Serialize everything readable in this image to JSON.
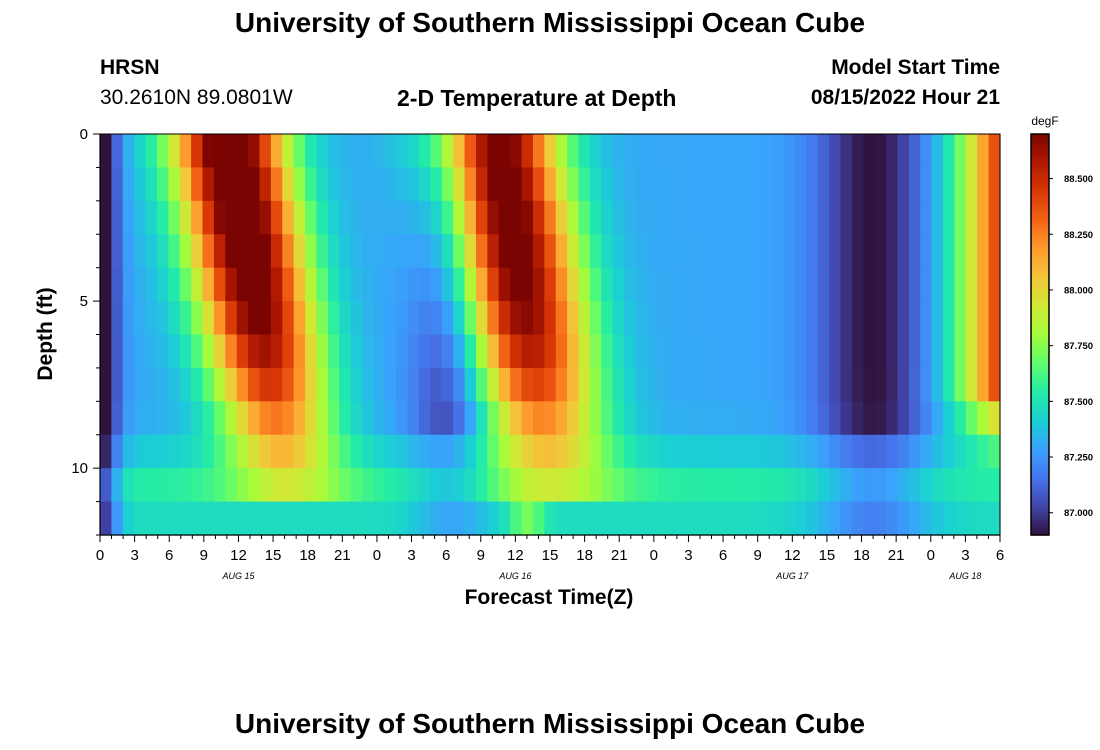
{
  "page": {
    "title": "University of Southern Mississippi Ocean Cube",
    "station": "HRSN",
    "coords": "30.2610N  89.0801W",
    "subtitle": "2-D Temperature at Depth",
    "model_label": "Model Start Time",
    "model_time": "08/15/2022 Hour 21",
    "footer_title": "University of Southern Mississippi Ocean Cube"
  },
  "chart_data": {
    "type": "heatmap",
    "xlabel": "Forecast Time(Z)",
    "ylabel": "Depth (ft)",
    "x_hours_since_aug15_00z": [
      0,
      78
    ],
    "x_tick_labels": [
      "0",
      "3",
      "6",
      "9",
      "12",
      "15",
      "18",
      "21",
      "0",
      "3",
      "6",
      "9",
      "12",
      "15",
      "18",
      "21",
      "0",
      "3",
      "6",
      "9",
      "12",
      "15",
      "18",
      "21",
      "0",
      "3",
      "6"
    ],
    "day_labels": [
      {
        "label": "AUG 15",
        "hour": 12
      },
      {
        "label": "AUG 16",
        "hour": 36
      },
      {
        "label": "AUG 17",
        "hour": 60
      },
      {
        "label": "AUG 18",
        "hour": 75
      }
    ],
    "y_range_ft": [
      0,
      12
    ],
    "y_reversed": true,
    "y_ticks": [
      0,
      5,
      10
    ],
    "colorbar": {
      "unit": "degF",
      "min": 86.9,
      "max": 88.7,
      "tick_values": [
        87.0,
        87.25,
        87.5,
        87.75,
        88.0,
        88.25,
        88.5
      ],
      "tick_labels": [
        "87.000",
        "87.250",
        "87.500",
        "87.750",
        "88.000",
        "88.250",
        "88.500"
      ],
      "colormap": "turbo",
      "colors": [
        "#30123b",
        "#4145ab",
        "#4675ed",
        "#39a2fc",
        "#1bcfd4",
        "#24eca6",
        "#61fc6c",
        "#a4fc3b",
        "#d1e834",
        "#f3c63a",
        "#fe9b2d",
        "#f36315",
        "#d93806",
        "#b11901",
        "#7a0402"
      ]
    },
    "grid_cells": {
      "time_columns": 79,
      "depth_rows": 12
    },
    "warm_bands": [
      {
        "label": "day 1 warm",
        "peak_hour": 11,
        "peak_degF": 88.65
      },
      {
        "label": "day 2 warm",
        "peak_hour": 34,
        "peak_degF": 88.7
      },
      {
        "label": "day 3 warm",
        "peak_hour": 78,
        "peak_degF": 88.55
      }
    ],
    "cool_bands": [
      {
        "label": "day 1 cool",
        "center_hour": 31,
        "min_degF": 87.0
      },
      {
        "label": "day 2 cool",
        "center_hour": 67,
        "min_degF": 86.95
      }
    ]
  }
}
